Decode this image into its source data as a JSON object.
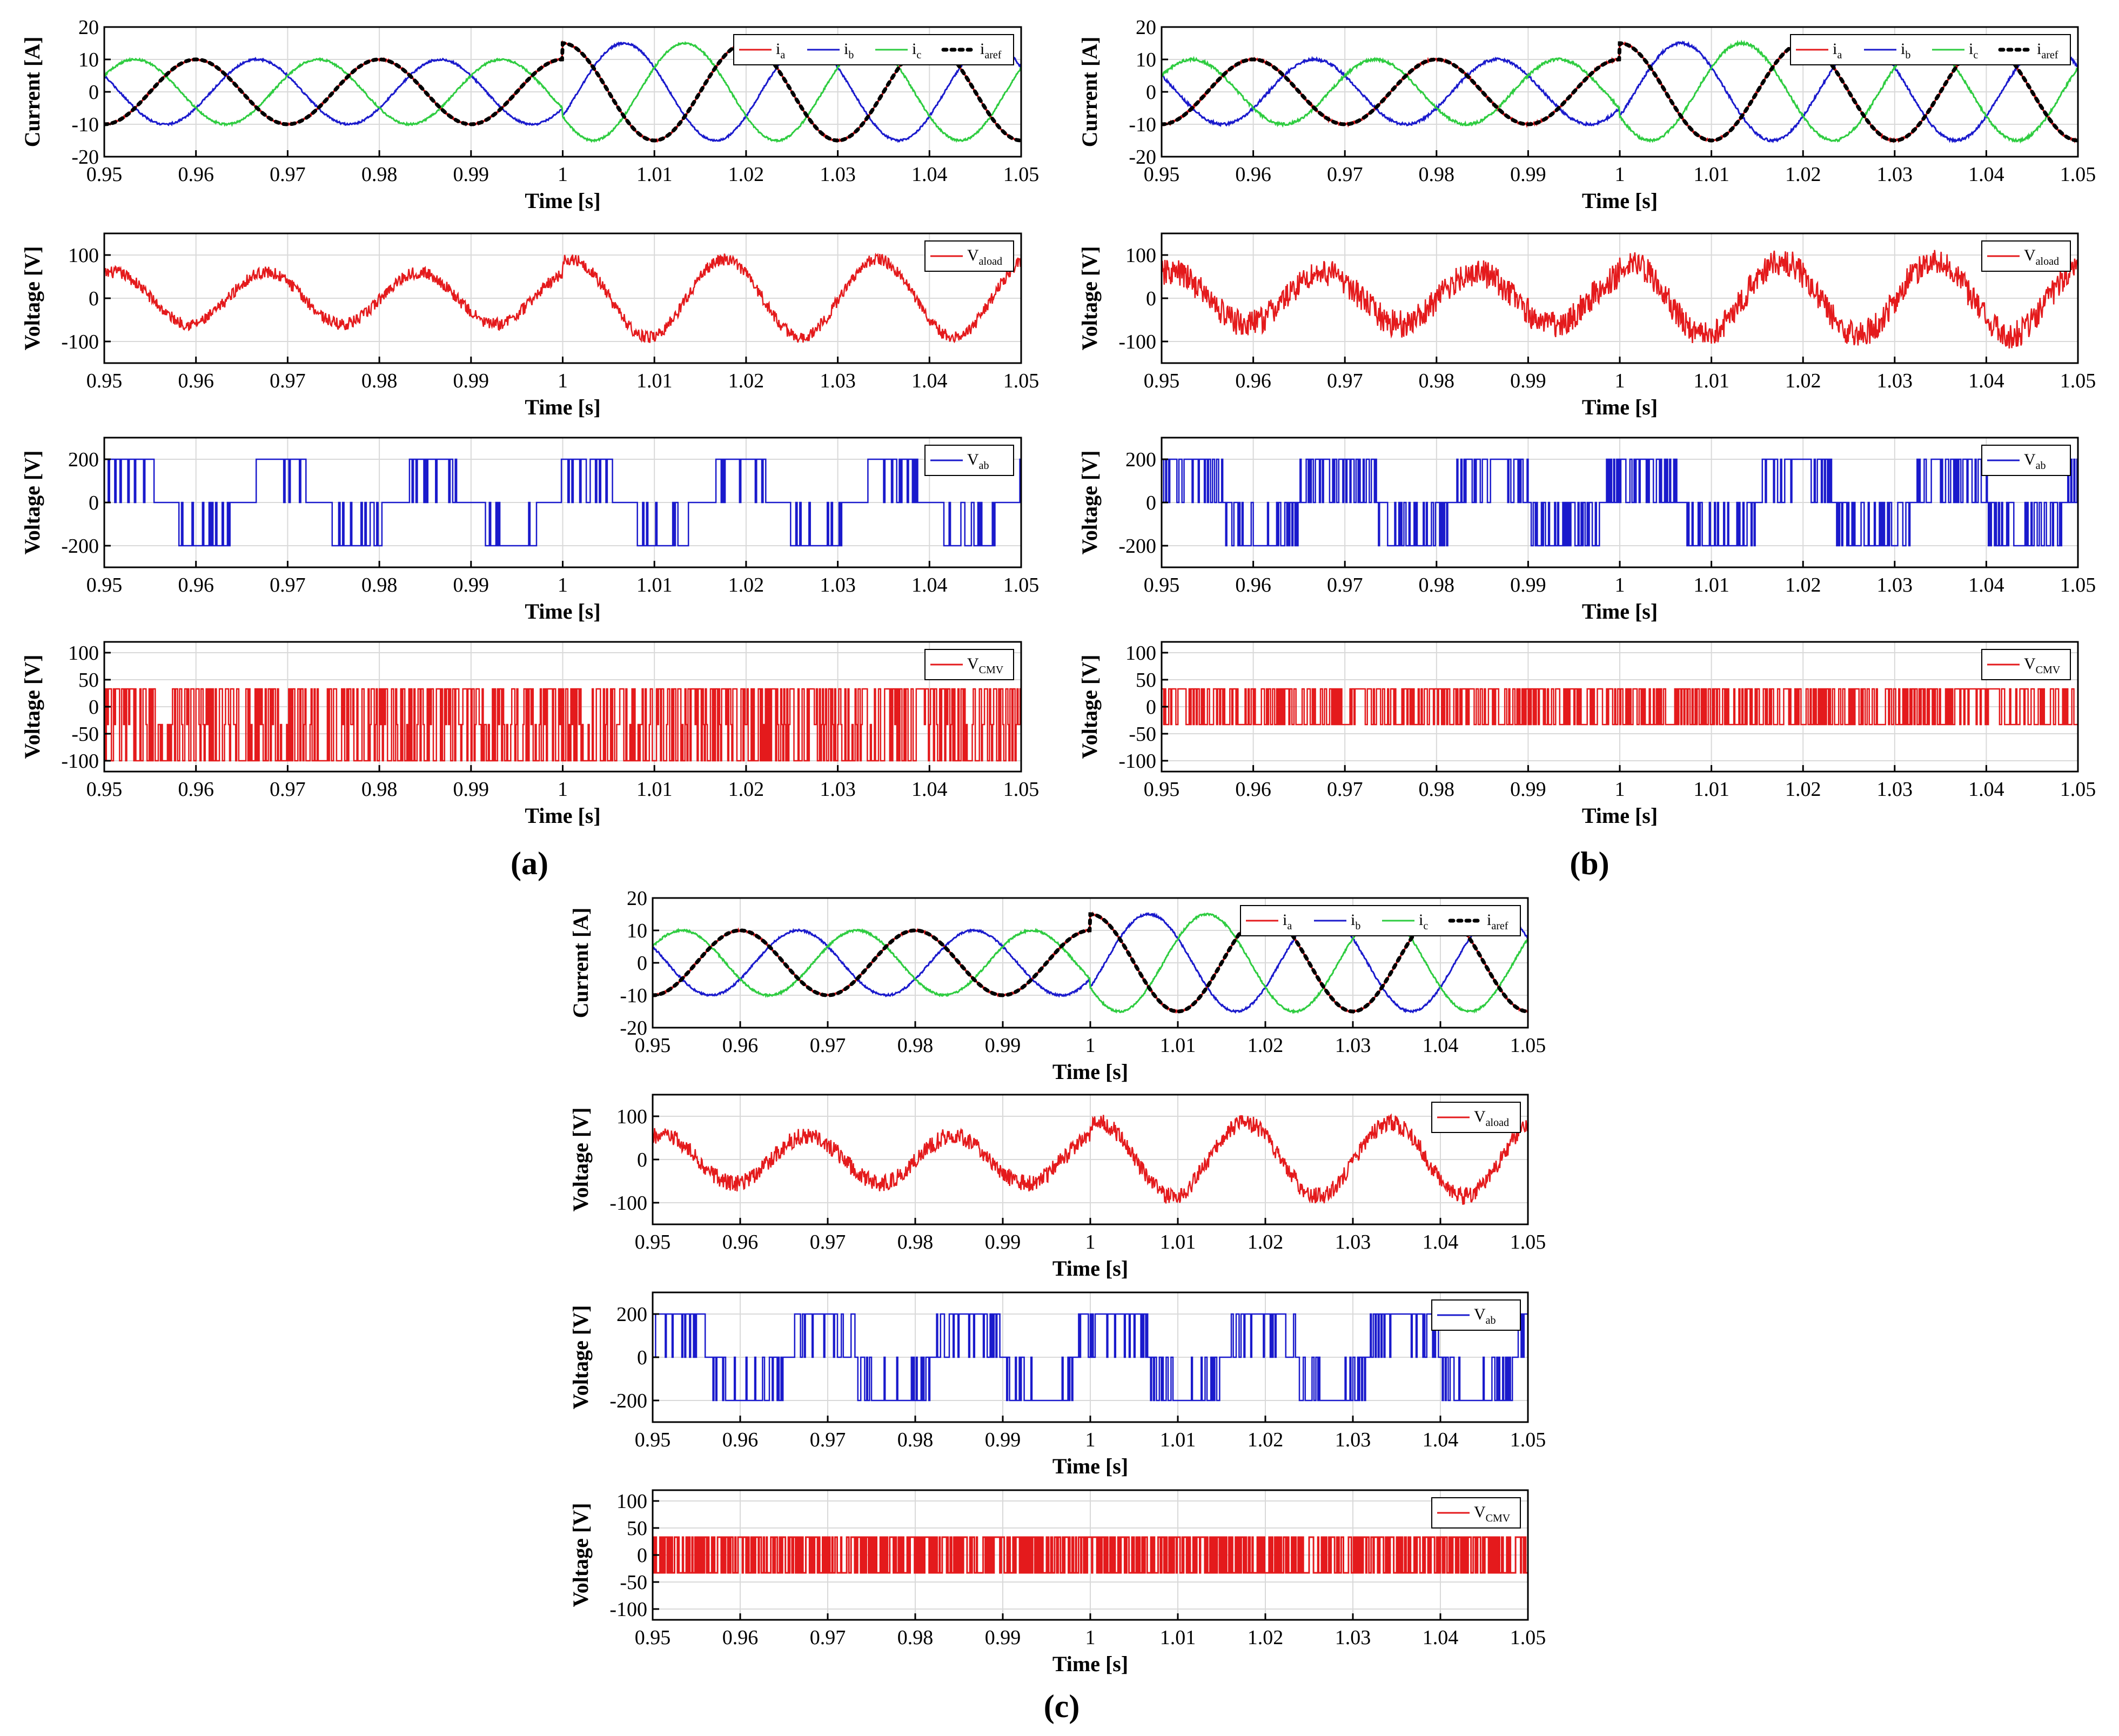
{
  "figure": {
    "panel_labels": [
      "(a)",
      "(b)",
      "(c)"
    ],
    "colors": {
      "red": "#e41a1c",
      "blue": "#1a1acc",
      "green": "#2ecc40",
      "black": "#000000",
      "grid": "#d9d9d9",
      "axis": "#000000"
    }
  },
  "chart_data": [
    {
      "panel": "a",
      "row": 0,
      "type": "line",
      "title": "",
      "xlabel": "Time [s]",
      "ylabel": "Current [A]",
      "xlim": [
        0.95,
        1.05
      ],
      "ylim": [
        -20,
        20
      ],
      "xticks": [
        0.95,
        0.96,
        0.97,
        0.98,
        0.99,
        1,
        1.01,
        1.02,
        1.03,
        1.04,
        1.05
      ],
      "xtick_labels": [
        "0.95",
        "0.96",
        "0.97",
        "0.98",
        "0.99",
        "1",
        "1.01",
        "1.02",
        "1.03",
        "1.04",
        "1.05"
      ],
      "yticks": [
        -20,
        -10,
        0,
        10,
        20
      ],
      "ytick_labels": [
        "-20",
        "-10",
        "0",
        "10",
        "20"
      ],
      "legend": {
        "position": "top-right",
        "entries": [
          {
            "base": "i",
            "sub": "a",
            "color": "#e41a1c",
            "style": "solid"
          },
          {
            "base": "i",
            "sub": "b",
            "color": "#1a1acc",
            "style": "solid"
          },
          {
            "base": "i",
            "sub": "c",
            "color": "#2ecc40",
            "style": "solid"
          },
          {
            "base": "i",
            "sub": "aref",
            "color": "#000000",
            "style": "dotted"
          }
        ]
      },
      "waveform": {
        "kind": "three_phase",
        "frequency_hz": 50,
        "amplitude_before": 10,
        "amplitude_after": 15,
        "step_time": 1.0,
        "noise": 0.3,
        "phase_a_deg_at_0": 0
      },
      "series": [
        {
          "name": "i_a",
          "color": "#e41a1c"
        },
        {
          "name": "i_b",
          "color": "#1a1acc"
        },
        {
          "name": "i_c",
          "color": "#2ecc40"
        },
        {
          "name": "i_aref",
          "color": "#000000"
        }
      ]
    },
    {
      "panel": "a",
      "row": 1,
      "type": "line",
      "xlabel": "Time [s]",
      "ylabel": "Voltage [V]",
      "xlim": [
        0.95,
        1.05
      ],
      "ylim": [
        -150,
        150
      ],
      "xticks": [
        0.95,
        0.96,
        0.97,
        0.98,
        0.99,
        1,
        1.01,
        1.02,
        1.03,
        1.04,
        1.05
      ],
      "xtick_labels": [
        "0.95",
        "0.96",
        "0.97",
        "0.98",
        "0.99",
        "1",
        "1.01",
        "1.02",
        "1.03",
        "1.04",
        "1.05"
      ],
      "yticks": [
        -100,
        0,
        100
      ],
      "ytick_labels": [
        "-100",
        "0",
        "100"
      ],
      "legend": {
        "position": "top-right",
        "entries": [
          {
            "base": "V",
            "sub": "aload",
            "color": "#e41a1c",
            "style": "solid"
          }
        ]
      },
      "waveform": {
        "kind": "noisy_sine",
        "frequency_hz": 60,
        "amplitude_before": 60,
        "amplitude_after": 90,
        "step_time": 1.0,
        "noise": 14
      },
      "series": [
        {
          "name": "V_aload",
          "color": "#e41a1c"
        }
      ]
    },
    {
      "panel": "a",
      "row": 2,
      "type": "line",
      "xlabel": "Time [s]",
      "ylabel": "Voltage [V]",
      "xlim": [
        0.95,
        1.05
      ],
      "ylim": [
        -300,
        300
      ],
      "xticks": [
        0.95,
        0.96,
        0.97,
        0.98,
        0.99,
        1,
        1.01,
        1.02,
        1.03,
        1.04,
        1.05
      ],
      "xtick_labels": [
        "0.95",
        "0.96",
        "0.97",
        "0.98",
        "0.99",
        "1",
        "1.01",
        "1.02",
        "1.03",
        "1.04",
        "1.05"
      ],
      "yticks": [
        -200,
        0,
        200
      ],
      "ytick_labels": [
        "-200",
        "0",
        "200"
      ],
      "legend": {
        "position": "top-right",
        "entries": [
          {
            "base": "V",
            "sub": "ab",
            "color": "#1a1acc",
            "style": "solid"
          }
        ]
      },
      "waveform": {
        "kind": "pwm_six_step",
        "levels": [
          -200,
          0,
          200
        ],
        "frequency_hz": 60,
        "switch_density": 0.3
      },
      "series": [
        {
          "name": "V_ab",
          "color": "#1a1acc"
        }
      ]
    },
    {
      "panel": "a",
      "row": 3,
      "type": "line",
      "xlabel": "Time [s]",
      "ylabel": "Voltage [V]",
      "xlim": [
        0.95,
        1.05
      ],
      "ylim": [
        -120,
        120
      ],
      "xticks": [
        0.95,
        0.96,
        0.97,
        0.98,
        0.99,
        1,
        1.01,
        1.02,
        1.03,
        1.04,
        1.05
      ],
      "xtick_labels": [
        "0.95",
        "0.96",
        "0.97",
        "0.98",
        "0.99",
        "1",
        "1.01",
        "1.02",
        "1.03",
        "1.04",
        "1.05"
      ],
      "yticks": [
        -100,
        -50,
        0,
        50,
        100
      ],
      "ytick_labels": [
        "-100",
        "-50",
        "0",
        "50",
        "100"
      ],
      "legend": {
        "position": "top-right",
        "entries": [
          {
            "base": "V",
            "sub": "CMV",
            "color": "#e41a1c",
            "style": "solid"
          }
        ]
      },
      "waveform": {
        "kind": "pwm_levels",
        "levels": [
          -100,
          -33,
          33
        ],
        "density": 0.5
      },
      "series": [
        {
          "name": "V_CMV",
          "color": "#e41a1c"
        }
      ]
    },
    {
      "panel": "b",
      "row": 0,
      "type": "line",
      "xlabel": "Time [s]",
      "ylabel": "Current [A]",
      "xlim": [
        0.95,
        1.05
      ],
      "ylim": [
        -20,
        20
      ],
      "xticks": [
        0.95,
        0.96,
        0.97,
        0.98,
        0.99,
        1,
        1.01,
        1.02,
        1.03,
        1.04,
        1.05
      ],
      "xtick_labels": [
        "0.95",
        "0.96",
        "0.97",
        "0.98",
        "0.99",
        "1",
        "1.01",
        "1.02",
        "1.03",
        "1.04",
        "1.05"
      ],
      "yticks": [
        -20,
        -10,
        0,
        10,
        20
      ],
      "ytick_labels": [
        "-20",
        "-10",
        "0",
        "10",
        "20"
      ],
      "legend": {
        "position": "top-right",
        "entries": [
          {
            "base": "i",
            "sub": "a",
            "color": "#e41a1c",
            "style": "solid"
          },
          {
            "base": "i",
            "sub": "b",
            "color": "#1a1acc",
            "style": "solid"
          },
          {
            "base": "i",
            "sub": "c",
            "color": "#2ecc40",
            "style": "solid"
          },
          {
            "base": "i",
            "sub": "aref",
            "color": "#000000",
            "style": "dotted"
          }
        ]
      },
      "waveform": {
        "kind": "three_phase",
        "frequency_hz": 50,
        "amplitude_before": 10,
        "amplitude_after": 15,
        "step_time": 1.0,
        "noise": 0.4,
        "phase_a_deg_at_0": 0
      },
      "series": [
        {
          "name": "i_a",
          "color": "#e41a1c"
        },
        {
          "name": "i_b",
          "color": "#1a1acc"
        },
        {
          "name": "i_c",
          "color": "#2ecc40"
        },
        {
          "name": "i_aref",
          "color": "#000000"
        }
      ]
    },
    {
      "panel": "b",
      "row": 1,
      "type": "line",
      "xlabel": "Time [s]",
      "ylabel": "Voltage [V]",
      "xlim": [
        0.95,
        1.05
      ],
      "ylim": [
        -150,
        150
      ],
      "xticks": [
        0.95,
        0.96,
        0.97,
        0.98,
        0.99,
        1,
        1.01,
        1.02,
        1.03,
        1.04,
        1.05
      ],
      "xtick_labels": [
        "0.95",
        "0.96",
        "0.97",
        "0.98",
        "0.99",
        "1",
        "1.01",
        "1.02",
        "1.03",
        "1.04",
        "1.05"
      ],
      "yticks": [
        -100,
        0,
        100
      ],
      "ytick_labels": [
        "-100",
        "0",
        "100"
      ],
      "legend": {
        "position": "top-right",
        "entries": [
          {
            "base": "V",
            "sub": "aload",
            "color": "#e41a1c",
            "style": "solid"
          }
        ]
      },
      "waveform": {
        "kind": "noisy_sine",
        "frequency_hz": 60,
        "amplitude_before": 60,
        "amplitude_after": 85,
        "step_time": 1.0,
        "noise": 32
      },
      "series": [
        {
          "name": "V_aload",
          "color": "#e41a1c"
        }
      ]
    },
    {
      "panel": "b",
      "row": 2,
      "type": "line",
      "xlabel": "Time [s]",
      "ylabel": "Voltage [V]",
      "xlim": [
        0.95,
        1.05
      ],
      "ylim": [
        -300,
        300
      ],
      "xticks": [
        0.95,
        0.96,
        0.97,
        0.98,
        0.99,
        1,
        1.01,
        1.02,
        1.03,
        1.04,
        1.05
      ],
      "xtick_labels": [
        "0.95",
        "0.96",
        "0.97",
        "0.98",
        "0.99",
        "1",
        "1.01",
        "1.02",
        "1.03",
        "1.04",
        "1.05"
      ],
      "yticks": [
        -200,
        0,
        200
      ],
      "ytick_labels": [
        "-200",
        "0",
        "200"
      ],
      "legend": {
        "position": "top-right",
        "entries": [
          {
            "base": "V",
            "sub": "ab",
            "color": "#1a1acc",
            "style": "solid"
          }
        ]
      },
      "waveform": {
        "kind": "pwm_dense",
        "levels": [
          -200,
          0,
          200
        ],
        "frequency_hz": 60,
        "switch_density": 0.8
      },
      "series": [
        {
          "name": "V_ab",
          "color": "#1a1acc"
        }
      ]
    },
    {
      "panel": "b",
      "row": 3,
      "type": "line",
      "xlabel": "Time [s]",
      "ylabel": "Voltage [V]",
      "xlim": [
        0.95,
        1.05
      ],
      "ylim": [
        -120,
        120
      ],
      "xticks": [
        0.95,
        0.96,
        0.97,
        0.98,
        0.99,
        1,
        1.01,
        1.02,
        1.03,
        1.04,
        1.05
      ],
      "xtick_labels": [
        "0.95",
        "0.96",
        "0.97",
        "0.98",
        "0.99",
        "1",
        "1.01",
        "1.02",
        "1.03",
        "1.04",
        "1.05"
      ],
      "yticks": [
        -100,
        -50,
        0,
        50,
        100
      ],
      "ytick_labels": [
        "-100",
        "-50",
        "0",
        "50",
        "100"
      ],
      "legend": {
        "position": "top-right",
        "entries": [
          {
            "base": "V",
            "sub": "CMV",
            "color": "#e41a1c",
            "style": "solid"
          }
        ]
      },
      "waveform": {
        "kind": "pwm_levels",
        "levels": [
          -33,
          33
        ],
        "density": 0.6
      },
      "series": [
        {
          "name": "V_CMV",
          "color": "#e41a1c"
        }
      ]
    },
    {
      "panel": "c",
      "row": 0,
      "type": "line",
      "xlabel": "Time [s]",
      "ylabel": "Current [A]",
      "xlim": [
        0.95,
        1.05
      ],
      "ylim": [
        -20,
        20
      ],
      "xticks": [
        0.95,
        0.96,
        0.97,
        0.98,
        0.99,
        1,
        1.01,
        1.02,
        1.03,
        1.04,
        1.05
      ],
      "xtick_labels": [
        "0.95",
        "0.96",
        "0.97",
        "0.98",
        "0.99",
        "1",
        "1.01",
        "1.02",
        "1.03",
        "1.04",
        "1.05"
      ],
      "yticks": [
        -20,
        -10,
        0,
        10,
        20
      ],
      "ytick_labels": [
        "-20",
        "-10",
        "0",
        "10",
        "20"
      ],
      "legend": {
        "position": "top-right",
        "entries": [
          {
            "base": "i",
            "sub": "a",
            "color": "#e41a1c",
            "style": "solid"
          },
          {
            "base": "i",
            "sub": "b",
            "color": "#1a1acc",
            "style": "solid"
          },
          {
            "base": "i",
            "sub": "c",
            "color": "#2ecc40",
            "style": "solid"
          },
          {
            "base": "i",
            "sub": "aref",
            "color": "#000000",
            "style": "dotted"
          }
        ]
      },
      "waveform": {
        "kind": "three_phase",
        "frequency_hz": 50,
        "amplitude_before": 10,
        "amplitude_after": 15,
        "step_time": 1.0,
        "noise": 0.3,
        "phase_a_deg_at_0": 0
      },
      "series": [
        {
          "name": "i_a",
          "color": "#e41a1c"
        },
        {
          "name": "i_b",
          "color": "#1a1acc"
        },
        {
          "name": "i_c",
          "color": "#2ecc40"
        },
        {
          "name": "i_aref",
          "color": "#000000"
        }
      ]
    },
    {
      "panel": "c",
      "row": 1,
      "type": "line",
      "xlabel": "Time [s]",
      "ylabel": "Voltage [V]",
      "xlim": [
        0.95,
        1.05
      ],
      "ylim": [
        -150,
        150
      ],
      "xticks": [
        0.95,
        0.96,
        0.97,
        0.98,
        0.99,
        1,
        1.01,
        1.02,
        1.03,
        1.04,
        1.05
      ],
      "xtick_labels": [
        "0.95",
        "0.96",
        "0.97",
        "0.98",
        "0.99",
        "1",
        "1.01",
        "1.02",
        "1.03",
        "1.04",
        "1.05"
      ],
      "yticks": [
        -100,
        0,
        100
      ],
      "ytick_labels": [
        "-100",
        "0",
        "100"
      ],
      "legend": {
        "position": "top-right",
        "entries": [
          {
            "base": "V",
            "sub": "aload",
            "color": "#e41a1c",
            "style": "solid"
          }
        ]
      },
      "waveform": {
        "kind": "noisy_sine",
        "frequency_hz": 60,
        "amplitude_before": 55,
        "amplitude_after": 85,
        "step_time": 1.0,
        "noise": 20
      },
      "series": [
        {
          "name": "V_aload",
          "color": "#e41a1c"
        }
      ]
    },
    {
      "panel": "c",
      "row": 2,
      "type": "line",
      "xlabel": "Time [s]",
      "ylabel": "Voltage [V]",
      "xlim": [
        0.95,
        1.05
      ],
      "ylim": [
        -300,
        300
      ],
      "xticks": [
        0.95,
        0.96,
        0.97,
        0.98,
        0.99,
        1,
        1.01,
        1.02,
        1.03,
        1.04,
        1.05
      ],
      "xtick_labels": [
        "0.95",
        "0.96",
        "0.97",
        "0.98",
        "0.99",
        "1",
        "1.01",
        "1.02",
        "1.03",
        "1.04",
        "1.05"
      ],
      "yticks": [
        -200,
        0,
        200
      ],
      "ytick_labels": [
        "-200",
        "0",
        "200"
      ],
      "legend": {
        "position": "top-right",
        "entries": [
          {
            "base": "V",
            "sub": "ab",
            "color": "#1a1acc",
            "style": "solid"
          }
        ]
      },
      "waveform": {
        "kind": "pwm_dense",
        "levels": [
          -200,
          0,
          200
        ],
        "frequency_hz": 60,
        "switch_density": 1.0
      },
      "series": [
        {
          "name": "V_ab",
          "color": "#1a1acc"
        }
      ]
    },
    {
      "panel": "c",
      "row": 3,
      "type": "line",
      "xlabel": "Time [s]",
      "ylabel": "Voltage [V]",
      "xlim": [
        0.95,
        1.05
      ],
      "ylim": [
        -120,
        120
      ],
      "xticks": [
        0.95,
        0.96,
        0.97,
        0.98,
        0.99,
        1,
        1.01,
        1.02,
        1.03,
        1.04,
        1.05
      ],
      "xtick_labels": [
        "0.95",
        "0.96",
        "0.97",
        "0.98",
        "0.99",
        "1",
        "1.01",
        "1.02",
        "1.03",
        "1.04",
        "1.05"
      ],
      "yticks": [
        -100,
        -50,
        0,
        50,
        100
      ],
      "ytick_labels": [
        "-100",
        "-50",
        "0",
        "50",
        "100"
      ],
      "legend": {
        "position": "top-right",
        "entries": [
          {
            "base": "V",
            "sub": "CMV",
            "color": "#e41a1c",
            "style": "solid"
          }
        ]
      },
      "waveform": {
        "kind": "pwm_solid",
        "levels": [
          -33,
          33
        ],
        "density": 1.0
      },
      "series": [
        {
          "name": "V_CMV",
          "color": "#e41a1c"
        }
      ]
    }
  ]
}
